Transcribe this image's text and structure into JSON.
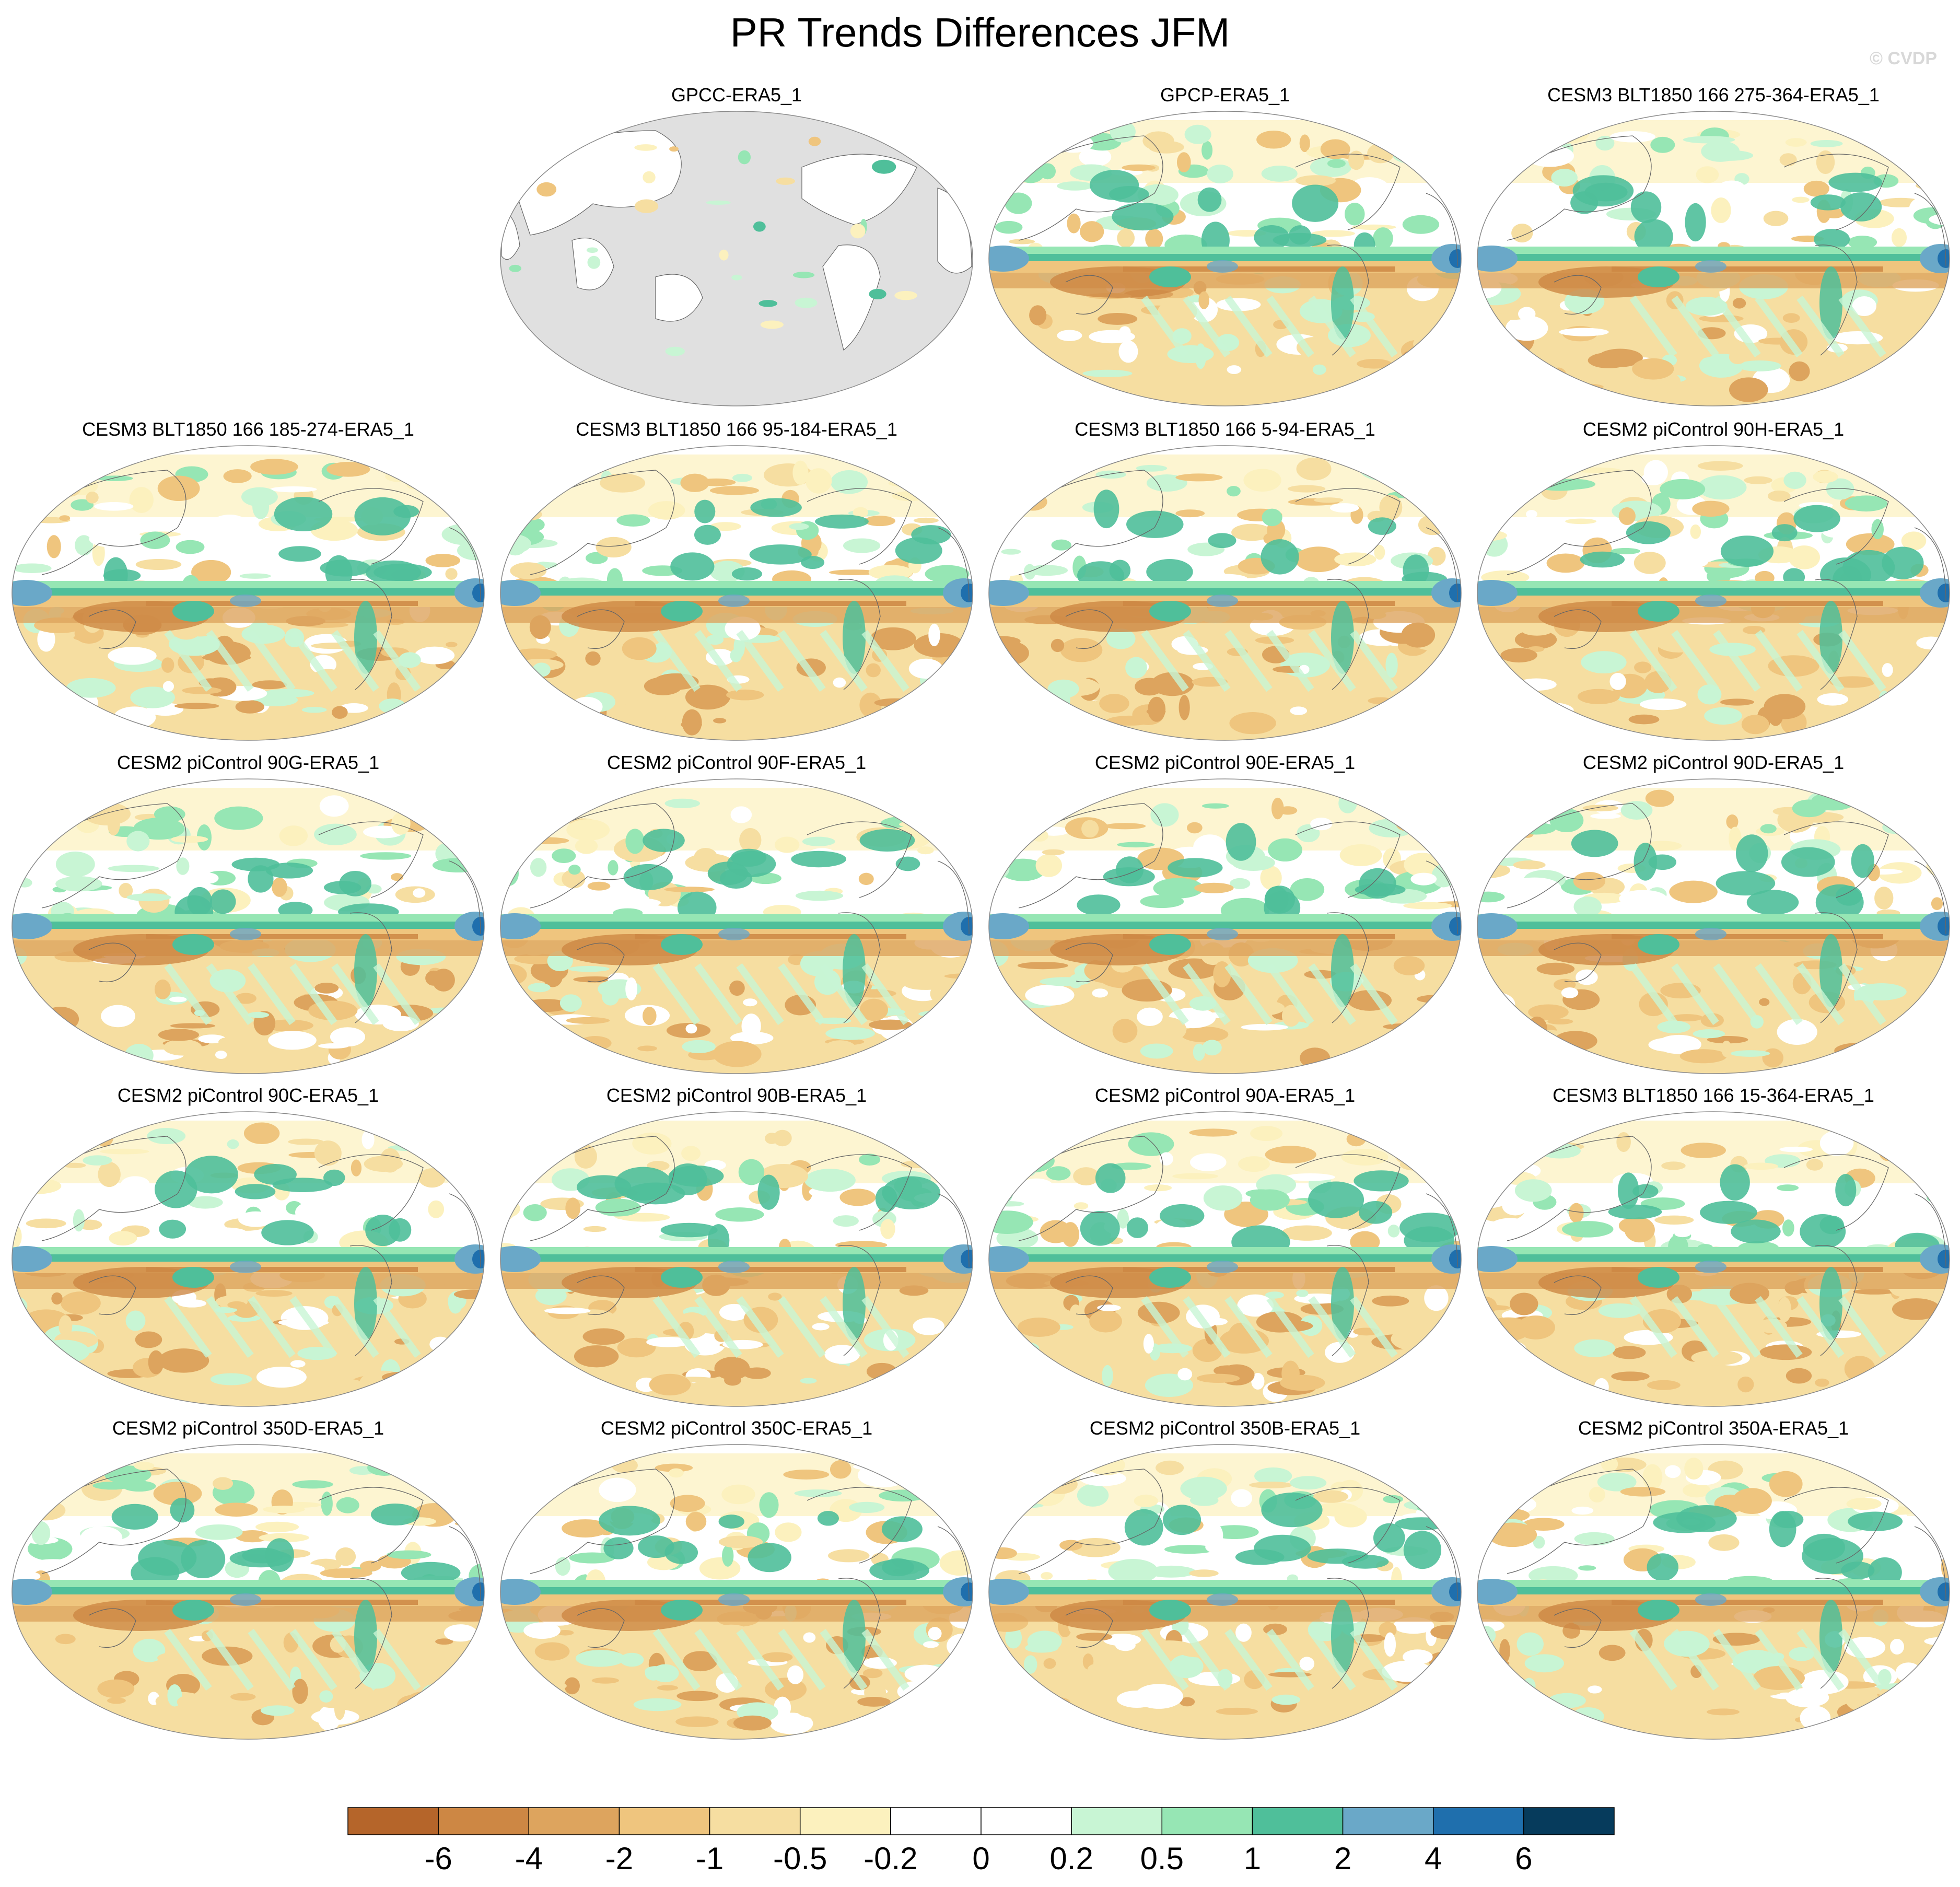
{
  "title": "PR Trends Differences JFM",
  "watermark": "© CVDP",
  "colors": {
    "ocean_mask": "#e0e0e0",
    "coastline": "#666666",
    "outline": "#888888"
  },
  "panels": [
    {
      "title": "GPCC-ERA5_1",
      "masked_ocean": true
    },
    {
      "title": "GPCP-ERA5_1",
      "masked_ocean": false
    },
    {
      "title": "CESM3 BLT1850 166 275-364-ERA5_1",
      "masked_ocean": false
    },
    {
      "title": "CESM3 BLT1850 166 185-274-ERA5_1",
      "masked_ocean": false
    },
    {
      "title": "CESM3 BLT1850 166 95-184-ERA5_1",
      "masked_ocean": false
    },
    {
      "title": "CESM3 BLT1850 166 5-94-ERA5_1",
      "masked_ocean": false
    },
    {
      "title": "CESM2 piControl 90H-ERA5_1",
      "masked_ocean": false
    },
    {
      "title": "CESM2 piControl 90G-ERA5_1",
      "masked_ocean": false
    },
    {
      "title": "CESM2 piControl 90F-ERA5_1",
      "masked_ocean": false
    },
    {
      "title": "CESM2 piControl 90E-ERA5_1",
      "masked_ocean": false
    },
    {
      "title": "CESM2 piControl 90D-ERA5_1",
      "masked_ocean": false
    },
    {
      "title": "CESM2 piControl 90C-ERA5_1",
      "masked_ocean": false
    },
    {
      "title": "CESM2 piControl 90B-ERA5_1",
      "masked_ocean": false
    },
    {
      "title": "CESM2 piControl 90A-ERA5_1",
      "masked_ocean": false
    },
    {
      "title": "CESM3 BLT1850 166 15-364-ERA5_1",
      "masked_ocean": false
    },
    {
      "title": "CESM2 piControl 350D-ERA5_1",
      "masked_ocean": false
    },
    {
      "title": "CESM2 piControl 350C-ERA5_1",
      "masked_ocean": false
    },
    {
      "title": "CESM2 piControl 350B-ERA5_1",
      "masked_ocean": false
    },
    {
      "title": "CESM2 piControl 350A-ERA5_1",
      "masked_ocean": false
    }
  ],
  "colorbar": {
    "tick_labels": [
      "-6",
      "-4",
      "-2",
      "-1",
      "-0.5",
      "-0.2",
      "0",
      "0.2",
      "0.5",
      "1",
      "2",
      "4",
      "6"
    ],
    "colors": [
      "#b5652a",
      "#cd8744",
      "#dda45e",
      "#efc57e",
      "#f6dea1",
      "#fcf1be",
      "#ffffff",
      "#ffffff",
      "#c8f5d4",
      "#96e6b4",
      "#4fbf9a",
      "#6aa8c8",
      "#1f6fad",
      "#063b5c"
    ]
  }
}
